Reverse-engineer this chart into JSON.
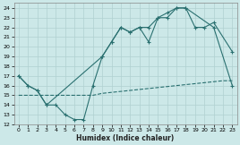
{
  "xlabel": "Humidex (Indice chaleur)",
  "bg_color": "#cce8e8",
  "grid_color": "#b0d0d0",
  "line_color": "#2a7070",
  "xlim": [
    -0.5,
    23.5
  ],
  "ylim": [
    12,
    24.5
  ],
  "xticks": [
    0,
    1,
    2,
    3,
    4,
    5,
    6,
    7,
    8,
    9,
    10,
    11,
    12,
    13,
    14,
    15,
    16,
    17,
    18,
    19,
    20,
    21,
    22,
    23
  ],
  "yticks": [
    12,
    13,
    14,
    15,
    16,
    17,
    18,
    19,
    20,
    21,
    22,
    23,
    24
  ],
  "line1_x": [
    0,
    1,
    2,
    3,
    4,
    5,
    6,
    7,
    8,
    9,
    10,
    11,
    12,
    13,
    14,
    15,
    16,
    17,
    18,
    21,
    23
  ],
  "line1_y": [
    17,
    16,
    15.5,
    14,
    14,
    13,
    12.5,
    12.5,
    16,
    19,
    20.5,
    22,
    21.5,
    22,
    20.5,
    23,
    23,
    24,
    24,
    22,
    16
  ],
  "line2_x": [
    0,
    1,
    2,
    3,
    9,
    10,
    11,
    12,
    13,
    14,
    15,
    16,
    17,
    18,
    19,
    20,
    21,
    23
  ],
  "line2_y": [
    17,
    16,
    15.5,
    14,
    19,
    20.5,
    22,
    21.5,
    22,
    22,
    23,
    23.5,
    24,
    24,
    22,
    22,
    22.5,
    19.5
  ],
  "line3_x": [
    0,
    1,
    2,
    3,
    4,
    5,
    6,
    7,
    8,
    9,
    10,
    11,
    12,
    13,
    14,
    15,
    16,
    17,
    18,
    19,
    20,
    21,
    22,
    23
  ],
  "line3_y": [
    15,
    15,
    15,
    15,
    15,
    15,
    15,
    15,
    15,
    15.2,
    15.3,
    15.4,
    15.5,
    15.6,
    15.7,
    15.8,
    15.9,
    16,
    16.1,
    16.2,
    16.3,
    16.4,
    16.5,
    16.5
  ]
}
